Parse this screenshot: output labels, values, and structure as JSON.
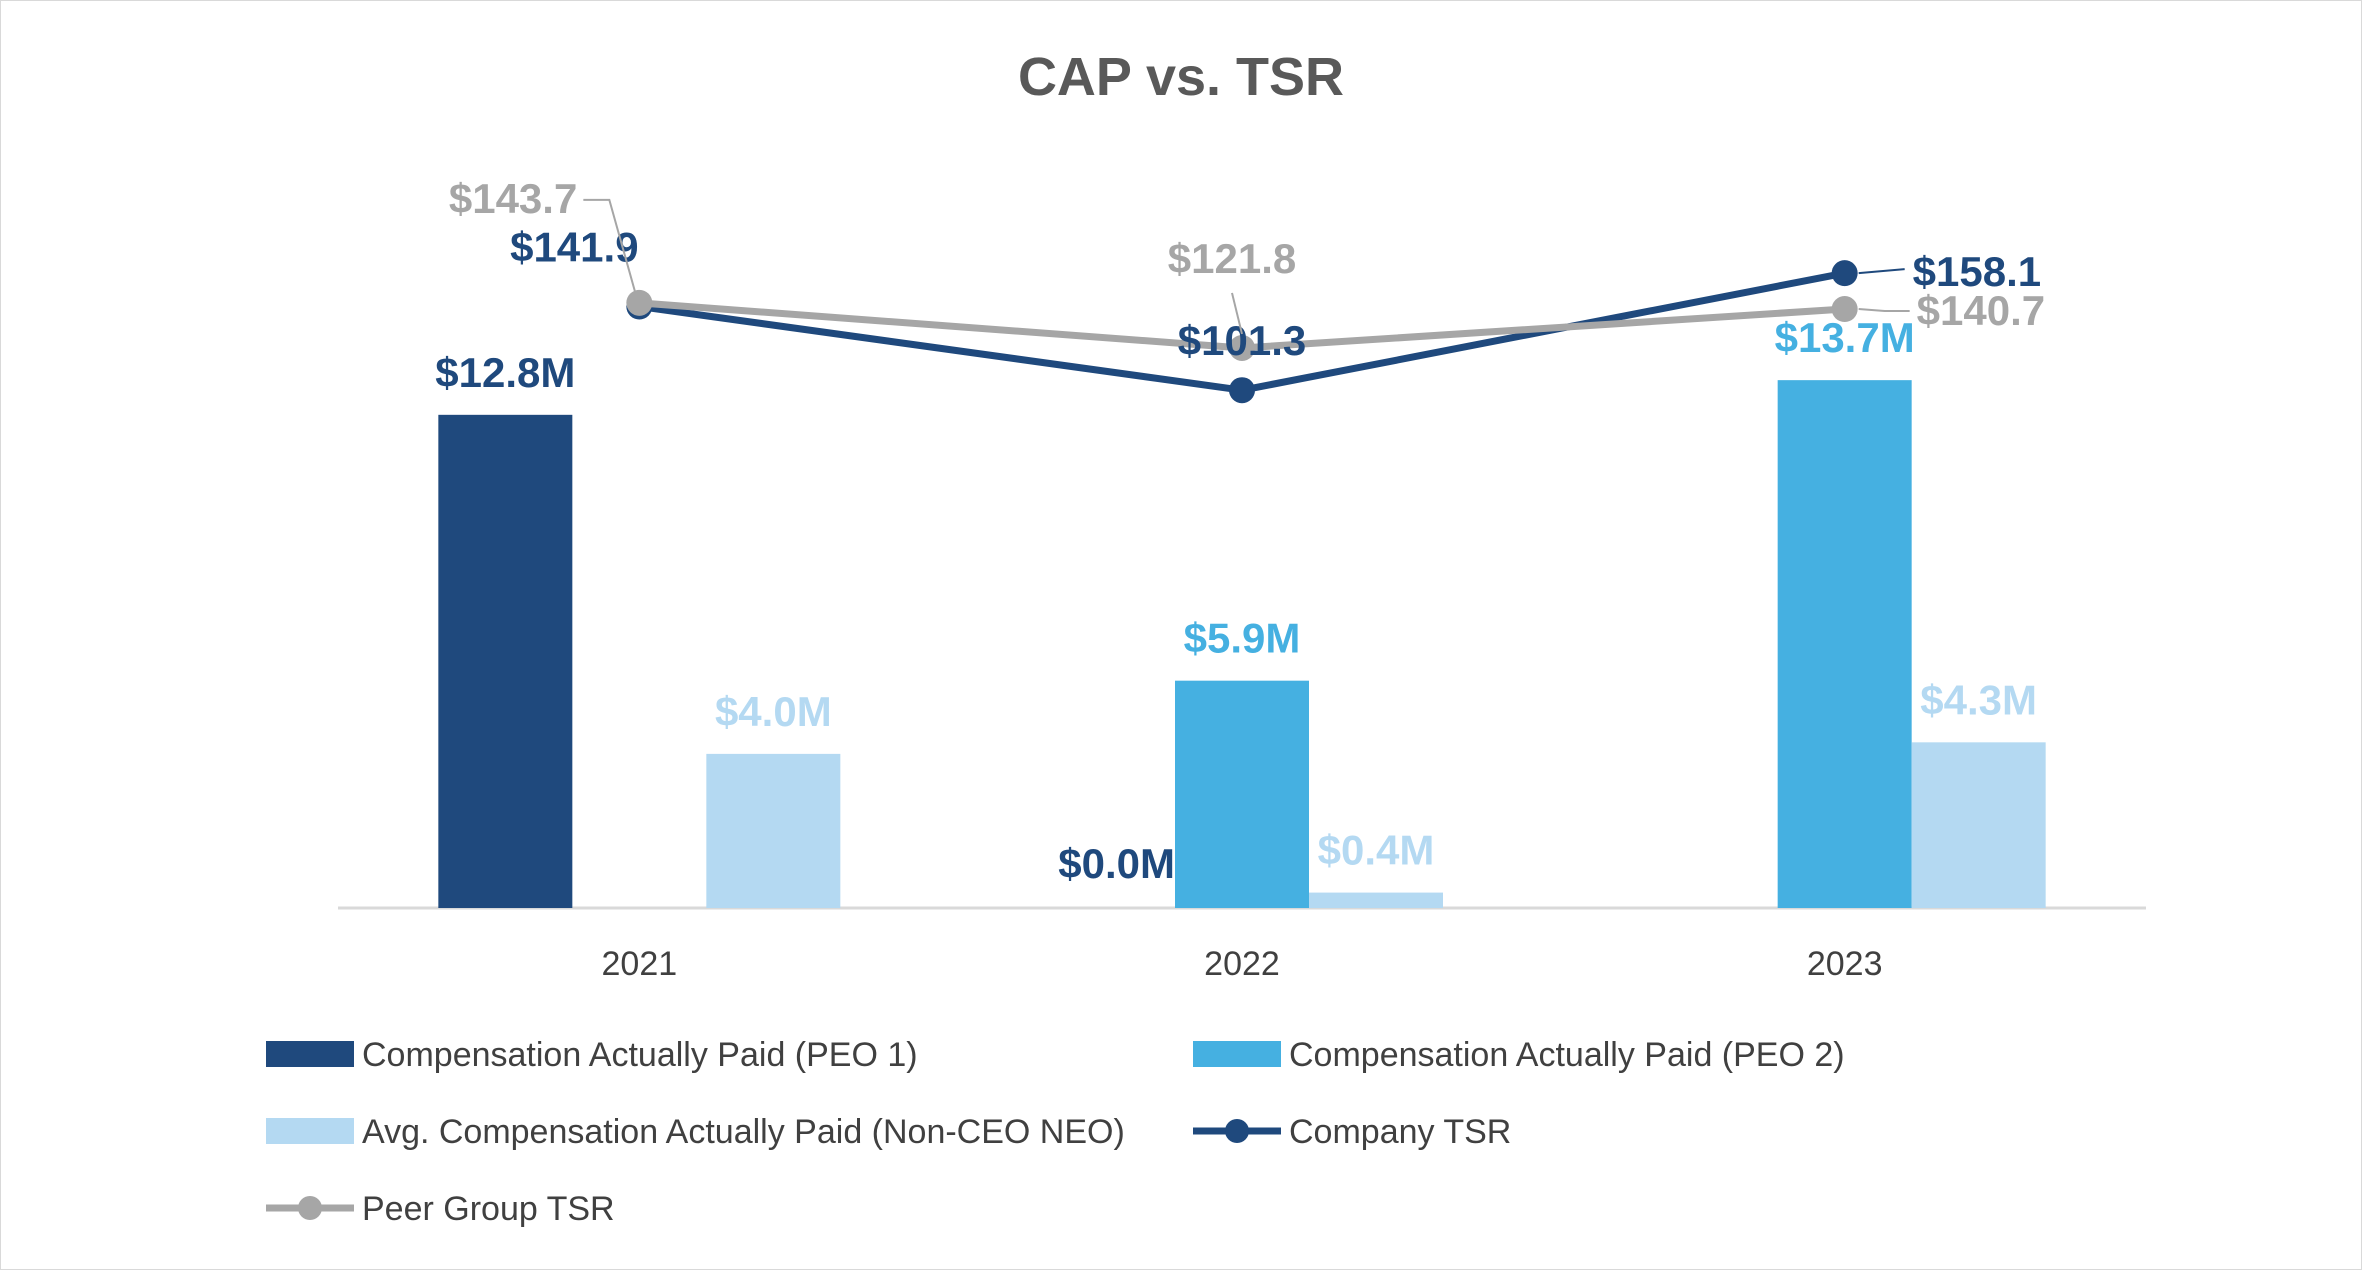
{
  "chart_data": {
    "type": "bar+line",
    "title": "CAP vs. TSR",
    "categories": [
      "2021",
      "2022",
      "2023"
    ],
    "bar_series": [
      {
        "name": "Compensation Actually Paid (PEO 1)",
        "color": "#1f497d",
        "values": [
          12.8,
          0.0,
          null
        ],
        "labels": [
          "$12.8M",
          "$0.0M",
          ""
        ]
      },
      {
        "name": "Compensation Actually Paid (PEO 2)",
        "color": "#45b0e1",
        "values": [
          null,
          5.9,
          13.7
        ],
        "labels": [
          "",
          "$5.9M",
          "$13.7M"
        ]
      },
      {
        "name": "Avg. Compensation Actually Paid (Non-CEO NEO)",
        "color": "#b4d9f2",
        "values": [
          4.0,
          0.4,
          4.3
        ],
        "labels": [
          "$4.0M",
          "$0.4M",
          "$4.3M"
        ]
      }
    ],
    "line_series": [
      {
        "name": "Company TSR",
        "color": "#1f497d",
        "values": [
          141.9,
          101.3,
          158.1
        ],
        "labels": [
          "$141.9",
          "$101.3",
          "$158.1"
        ]
      },
      {
        "name": "Peer Group TSR",
        "color": "#a6a6a6",
        "values": [
          143.7,
          121.8,
          140.7
        ],
        "labels": [
          "$143.7",
          "$121.8",
          "$140.7"
        ]
      }
    ],
    "bar_axis_range": [
      0,
      17
    ],
    "line_axis_range": [
      -150,
      230
    ],
    "axes_visible": false,
    "gridlines": false,
    "legend_position": "bottom"
  }
}
